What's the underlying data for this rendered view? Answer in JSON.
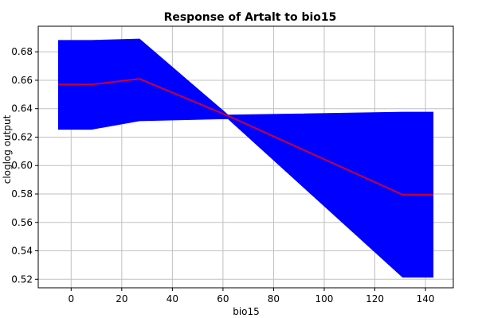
{
  "chart_data": {
    "type": "line",
    "title": "Response of Artalt to bio15",
    "xlabel": "bio15",
    "ylabel": "cloglog output",
    "xlim": [
      -13,
      151
    ],
    "ylim": [
      0.514,
      0.698
    ],
    "xticks": [
      0,
      20,
      40,
      60,
      80,
      100,
      120,
      140
    ],
    "yticks": [
      0.52,
      0.54,
      0.56,
      0.58,
      0.6,
      0.62,
      0.64,
      0.66,
      0.68
    ],
    "ytick_format": 2,
    "grid": true,
    "series": [
      {
        "role": "band",
        "color": "#0000ff",
        "x": [
          -5,
          8,
          27,
          62,
          131,
          143
        ],
        "upper": [
          0.688,
          0.688,
          0.689,
          0.6355,
          0.6375,
          0.6375
        ],
        "lower": [
          0.6255,
          0.6255,
          0.6315,
          0.633,
          0.5215,
          0.5215
        ]
      },
      {
        "role": "mean",
        "color": "#cc0033",
        "x": [
          -5,
          8,
          27,
          62,
          131,
          143
        ],
        "y": [
          0.657,
          0.657,
          0.661,
          0.635,
          0.5795,
          0.5795
        ]
      }
    ]
  }
}
